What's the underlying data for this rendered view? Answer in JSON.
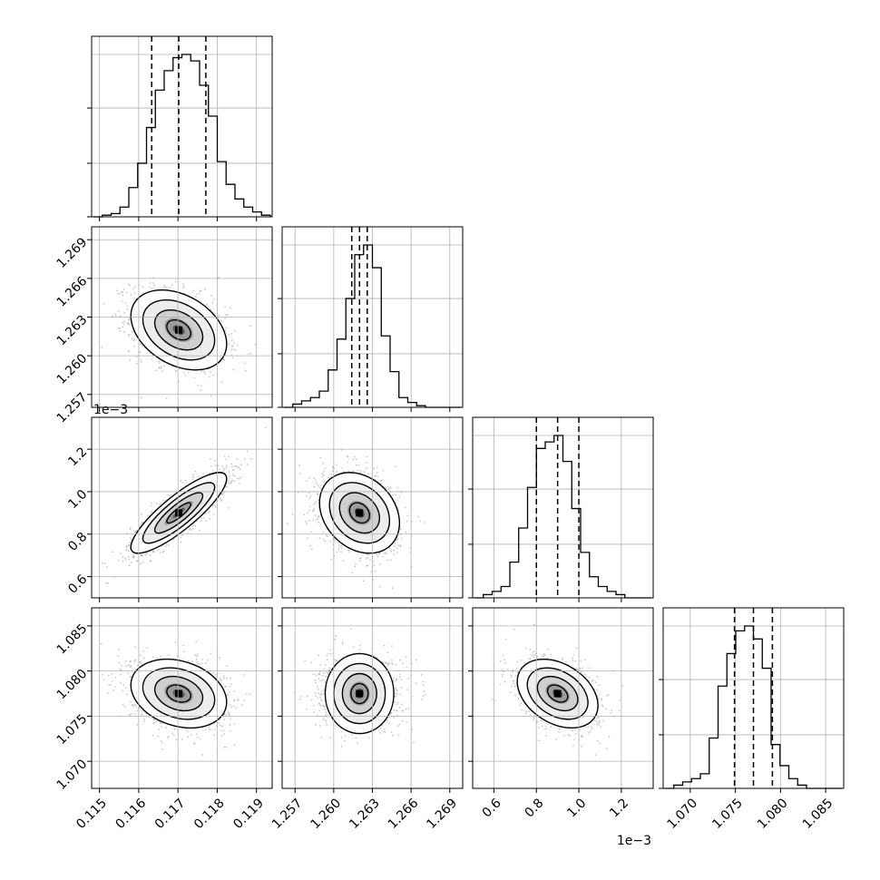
{
  "chart_data": {
    "type": "corner",
    "parameters": [
      {
        "range": [
          0.1148,
          0.1194
        ],
        "ticks": [
          0.115,
          0.116,
          0.117,
          0.118,
          0.119
        ],
        "tick_labels": [
          "0.115",
          "0.116",
          "0.117",
          "0.118",
          "0.119"
        ],
        "offset_label": "",
        "quantiles": [
          0.11633,
          0.11702,
          0.11771
        ],
        "hist_bins": [
          0.0,
          0.01,
          0.02,
          0.06,
          0.18,
          0.33,
          0.55,
          0.78,
          0.9,
          0.98,
          1.0,
          0.96,
          0.81,
          0.62,
          0.34,
          0.2,
          0.11,
          0.06,
          0.03,
          0.01
        ]
      },
      {
        "range": [
          1.256,
          1.27
        ],
        "ticks": [
          1.257,
          1.26,
          1.263,
          1.266,
          1.269
        ],
        "tick_labels": [
          "1.257",
          "1.260",
          "1.263",
          "1.266",
          "1.269"
        ],
        "offset_label": "",
        "quantiles": [
          1.2614,
          1.262,
          1.2626
        ],
        "hist_bins": [
          0.0,
          0.02,
          0.04,
          0.06,
          0.1,
          0.23,
          0.42,
          0.67,
          0.94,
          1.0,
          0.86,
          0.44,
          0.22,
          0.06,
          0.03,
          0.01,
          0.0,
          0.0,
          0.0,
          0.0
        ]
      },
      {
        "range": [
          0.5,
          1.35
        ],
        "ticks": [
          0.6,
          0.8,
          1.0,
          1.2
        ],
        "tick_labels": [
          "0.6",
          "0.8",
          "1.0",
          "1.2"
        ],
        "offset_label": "1e−3",
        "quantiles": [
          0.8,
          0.9,
          1.0
        ],
        "hist_bins": [
          0.0,
          0.02,
          0.04,
          0.07,
          0.22,
          0.43,
          0.68,
          0.92,
          0.96,
          1.0,
          0.84,
          0.55,
          0.28,
          0.13,
          0.07,
          0.04,
          0.02,
          0.0,
          0.0,
          0.0
        ]
      },
      {
        "range": [
          1.067,
          1.087
        ],
        "ticks": [
          1.07,
          1.075,
          1.08,
          1.085
        ],
        "tick_labels": [
          "1.070",
          "1.075",
          "1.080",
          "1.085"
        ],
        "offset_label": "",
        "quantiles": [
          1.0749,
          1.077,
          1.0791
        ],
        "hist_bins": [
          0.0,
          0.02,
          0.04,
          0.06,
          0.09,
          0.31,
          0.63,
          0.83,
          0.97,
          1.0,
          0.92,
          0.74,
          0.27,
          0.14,
          0.06,
          0.02,
          0.0,
          0.0,
          0.0,
          0.0
        ]
      }
    ],
    "pairs": [
      {
        "row": 1,
        "col": 0,
        "center": [
          0.11702,
          1.262
        ],
        "sigma": [
          0.00061,
          0.00155
        ],
        "corr": -0.35
      },
      {
        "row": 2,
        "col": 0,
        "center": [
          0.11702,
          0.9
        ],
        "sigma": [
          0.00061,
          0.095
        ],
        "corr": 0.85
      },
      {
        "row": 2,
        "col": 1,
        "center": [
          1.262,
          0.9
        ],
        "sigma": [
          0.00155,
          0.095
        ],
        "corr": -0.25
      },
      {
        "row": 3,
        "col": 0,
        "center": [
          0.11702,
          1.0775
        ],
        "sigma": [
          0.00061,
          0.0019
        ],
        "corr": -0.25
      },
      {
        "row": 3,
        "col": 1,
        "center": [
          1.262,
          1.0775
        ],
        "sigma": [
          0.00155,
          0.0019
        ],
        "corr": 0.0
      },
      {
        "row": 3,
        "col": 2,
        "center": [
          0.9,
          1.0775
        ],
        "sigma": [
          0.095,
          0.0019
        ],
        "corr": -0.35
      }
    ],
    "contour_levels_sigma": [
      0.5,
      1.0,
      1.5,
      2.0
    ],
    "grid": true,
    "quantile_line_style": "dashed"
  }
}
